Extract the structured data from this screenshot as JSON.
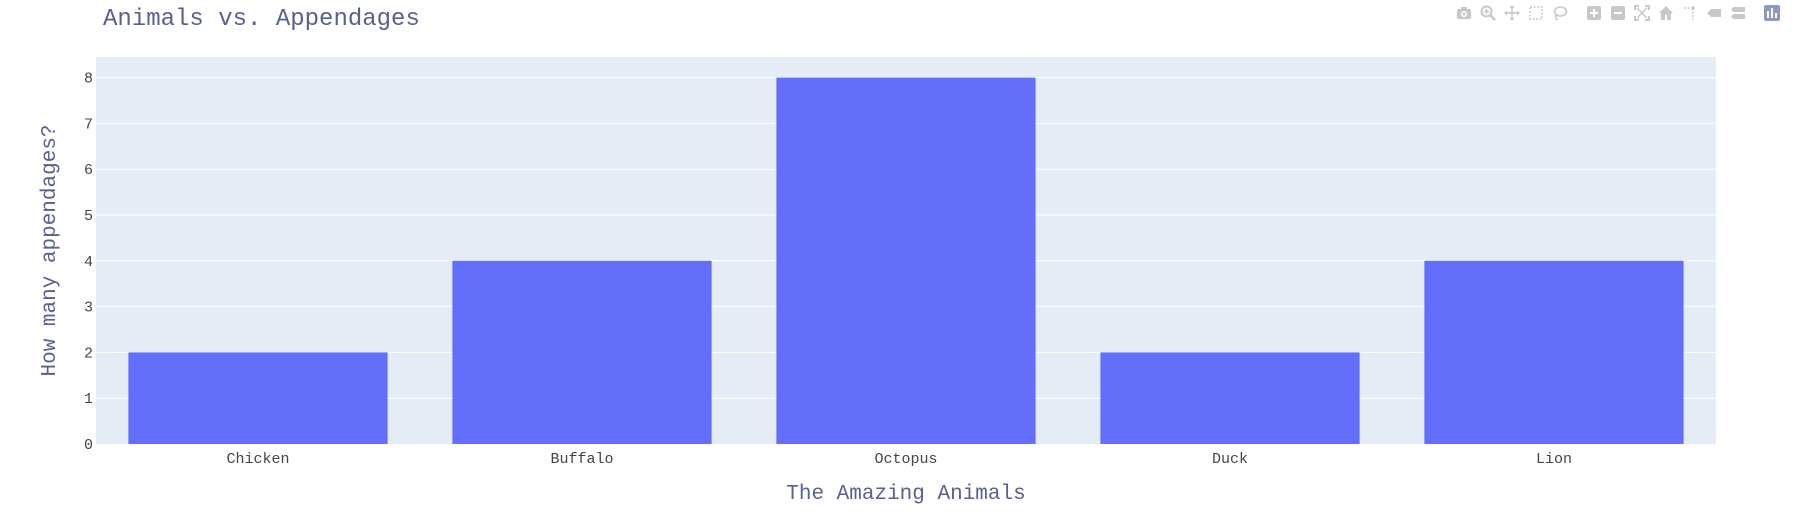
{
  "chart_data": {
    "type": "bar",
    "title": "Animals vs. Appendages",
    "xlabel": "The Amazing Animals",
    "ylabel": "How many appendages?",
    "categories": [
      "Chicken",
      "Buffalo",
      "Octopus",
      "Duck",
      "Lion"
    ],
    "values": [
      2,
      4,
      8,
      2,
      4
    ],
    "ylim": [
      0,
      8.45
    ],
    "yticks": [
      0,
      1,
      2,
      3,
      4,
      5,
      6,
      7,
      8
    ],
    "grid": true,
    "legend": "none",
    "colors": {
      "bar": "#636efa",
      "plot_bg": "#e5ecf6",
      "grid": "#ffffff",
      "title": "#5a5f91",
      "tick": "#444444"
    }
  },
  "modebar": {
    "icons": [
      "camera-icon",
      "zoom-icon",
      "pan-icon",
      "box-select-icon",
      "lasso-select-icon",
      "zoom-in-icon",
      "zoom-out-icon",
      "autoscale-icon",
      "reset-axes-icon",
      "spike-lines-icon",
      "hover-closest-icon",
      "hover-compare-icon",
      "plotly-logo-icon"
    ],
    "icon_color": "#c8c8c8"
  }
}
